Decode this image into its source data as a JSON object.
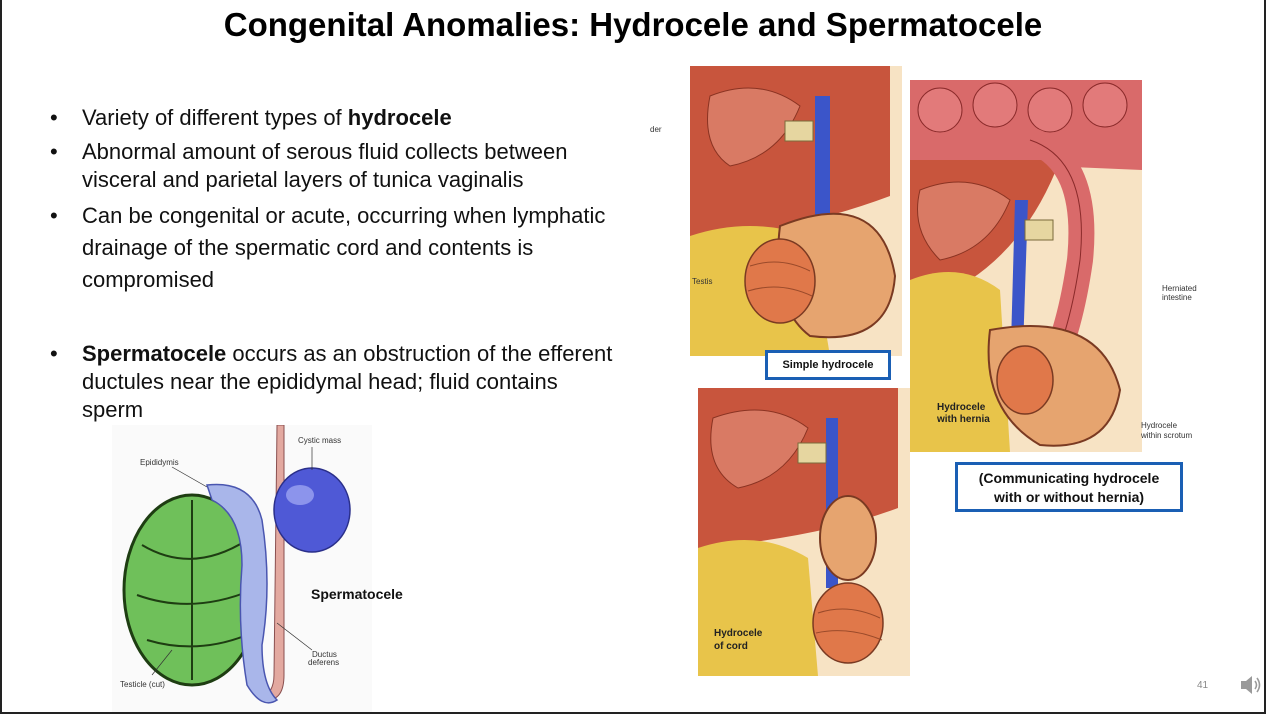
{
  "slide": {
    "title": "Congenital Anomalies: Hydrocele and Spermatocele",
    "bullets": [
      {
        "bold_prefix": "",
        "text": "Variety of different types of ",
        "bold_suffix": "hydrocele"
      },
      {
        "bold_prefix": "",
        "text": "Abnormal amount of serous fluid collects between visceral and parietal layers of tunica vaginalis",
        "bold_suffix": ""
      },
      {
        "bold_prefix": "",
        "text": "Can be congenital or acute, occurring when lymphatic drainage of the spermatic cord and contents is compromised",
        "bold_suffix": ""
      },
      {
        "bold_prefix": "Spermatocele",
        "text": " occurs as an obstruction of the efferent ductules near the epididymal head; fluid contains sperm",
        "bold_suffix": ""
      }
    ],
    "bullet_glyph": "•",
    "page_number": "41"
  },
  "spermatocele_figure": {
    "caption": "Spermatocele",
    "labels": {
      "cystic_mass": "Cystic mass",
      "epididymis": "Epididymis",
      "ductus": "Ductus",
      "deferens": "deferens",
      "testicle": "Testicle (cut)"
    }
  },
  "hydrocele_figures": {
    "simple": {
      "box_label": "Simple hydrocele",
      "label_der": "der",
      "label_testis": "Testis"
    },
    "hernia": {
      "herniated_1": "Herniated",
      "herniated_2": "intestine",
      "with_hernia_1": "Hydrocele",
      "with_hernia_2": "with hernia",
      "within_1": "Hydrocele",
      "within_2": "within scrotum",
      "box_line1": "(Communicating hydrocele",
      "box_line2": "with or without hernia)"
    },
    "cord": {
      "label_1": "Hydrocele",
      "label_2": "of cord"
    }
  },
  "colors": {
    "box_border": "#1a5fb4",
    "tissue": "#c8553d",
    "fat": "#e8c44a",
    "vessel_blue": "#3b55c9",
    "testicle_green": "#5fb34a",
    "cyst_blue": "#5560d8"
  },
  "icons": [
    "speaker-icon"
  ]
}
